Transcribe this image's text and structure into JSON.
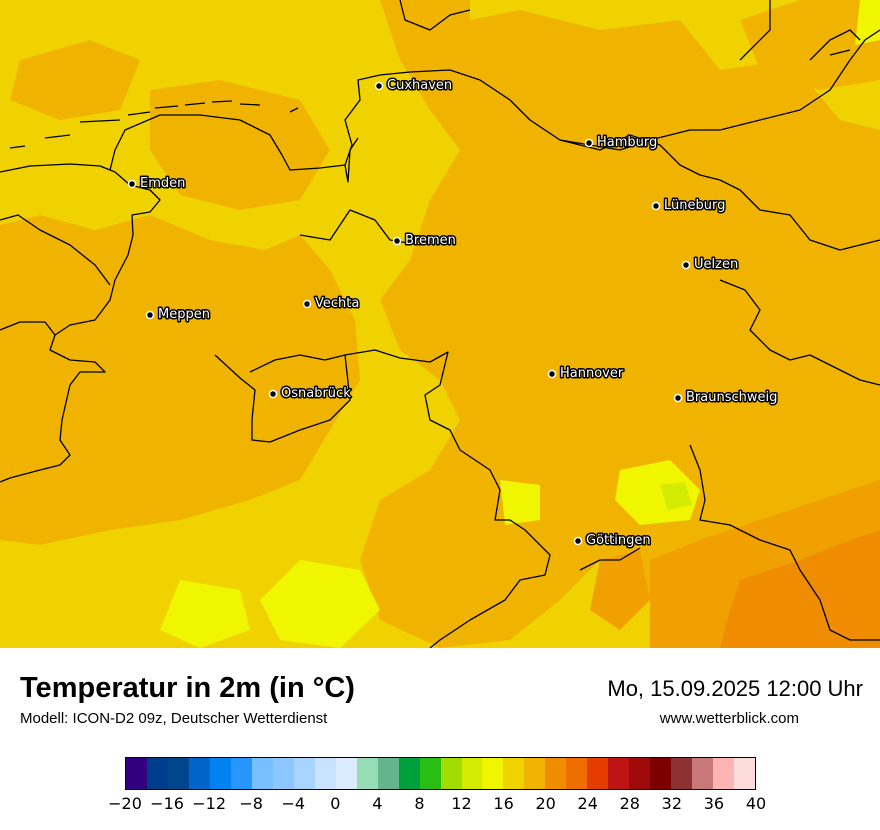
{
  "header": {
    "title": "Temperatur in 2m (in °C)",
    "model_info": "Modell: ICON-D2 09z, Deutscher Wetterdienst",
    "datetime": "Mo, 15.09.2025 12:00 Uhr",
    "website": "www.wetterblick.com"
  },
  "map": {
    "cities": [
      {
        "name": "Cuxhaven"
      },
      {
        "name": "Hamburg"
      },
      {
        "name": "Emden"
      },
      {
        "name": "Lüneburg"
      },
      {
        "name": "Bremen"
      },
      {
        "name": "Uelzen"
      },
      {
        "name": "Vechta"
      },
      {
        "name": "Meppen"
      },
      {
        "name": "Hannover"
      },
      {
        "name": "Osnabrück"
      },
      {
        "name": "Braunschweig"
      },
      {
        "name": "Göttingen"
      }
    ]
  },
  "legend": {
    "tick_labels": [
      "−20",
      "−16",
      "−12",
      "−8",
      "−4",
      "0",
      "4",
      "8",
      "12",
      "16",
      "20",
      "24",
      "28",
      "32",
      "36",
      "40"
    ],
    "colors": [
      "#310080",
      "#003c8c",
      "#00468c",
      "#0064c8",
      "#0082f0",
      "#2896ff",
      "#78bfff",
      "#8cc8ff",
      "#a8d5ff",
      "#c8e3ff",
      "#dcebff",
      "#96dcb4",
      "#64b48c",
      "#00a03c",
      "#28be14",
      "#a0dc00",
      "#d2eb00",
      "#f0f500",
      "#f0d200",
      "#f0b400",
      "#f08c00",
      "#f06e00",
      "#e63c00",
      "#be1414",
      "#a00a0a",
      "#7d0000",
      "#8c3232",
      "#c87878",
      "#ffb4b4",
      "#ffdcdc"
    ]
  }
}
